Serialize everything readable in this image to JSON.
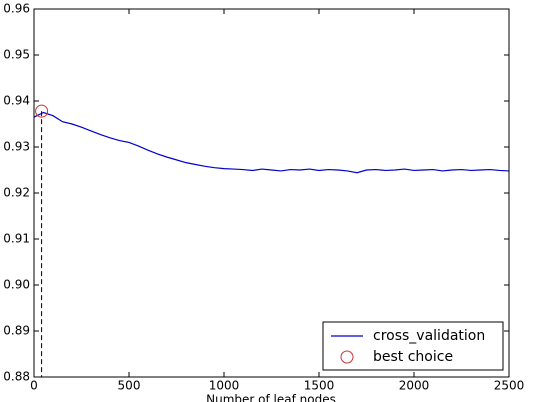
{
  "chart_data": {
    "type": "line",
    "xlabel": "Number of leaf nodes",
    "xlim": [
      0,
      2500
    ],
    "ylim": [
      0.88,
      0.96
    ],
    "xticks": [
      0,
      500,
      1000,
      1500,
      2000,
      2500
    ],
    "yticks": [
      0.88,
      0.89,
      {
        "value": 0.9,
        "label": "0.90"
      },
      0.91,
      0.92,
      0.93,
      0.94,
      0.95,
      0.96
    ],
    "legend": "lower right",
    "series": [
      {
        "name": "cross_validation",
        "color": "#0000cc",
        "x": [
          0,
          50,
          100,
          150,
          200,
          250,
          300,
          350,
          400,
          450,
          500,
          550,
          600,
          650,
          700,
          750,
          800,
          850,
          900,
          950,
          1000,
          1050,
          1100,
          1150,
          1200,
          1250,
          1300,
          1350,
          1400,
          1450,
          1500,
          1550,
          1600,
          1650,
          1700,
          1750,
          1800,
          1850,
          1900,
          1950,
          2000,
          2050,
          2100,
          2150,
          2200,
          2250,
          2300,
          2350,
          2400,
          2450,
          2500
        ],
        "values": [
          0.9365,
          0.9375,
          0.9368,
          0.9355,
          0.935,
          0.9343,
          0.9335,
          0.9327,
          0.932,
          0.9314,
          0.931,
          0.9302,
          0.9293,
          0.9285,
          0.9278,
          0.9272,
          0.9266,
          0.9262,
          0.9258,
          0.9255,
          0.9253,
          0.9252,
          0.9251,
          0.9249,
          0.9252,
          0.925,
          0.9248,
          0.9251,
          0.925,
          0.9252,
          0.9249,
          0.9251,
          0.925,
          0.9248,
          0.9244,
          0.925,
          0.9251,
          0.9249,
          0.925,
          0.9252,
          0.9249,
          0.925,
          0.9251,
          0.9248,
          0.925,
          0.9251,
          0.9249,
          0.925,
          0.9251,
          0.9249,
          0.9248
        ]
      },
      {
        "name": "best choice",
        "color": "#cc3333",
        "marker": "circle",
        "x": [
          40
        ],
        "values": [
          0.9378
        ]
      }
    ]
  }
}
